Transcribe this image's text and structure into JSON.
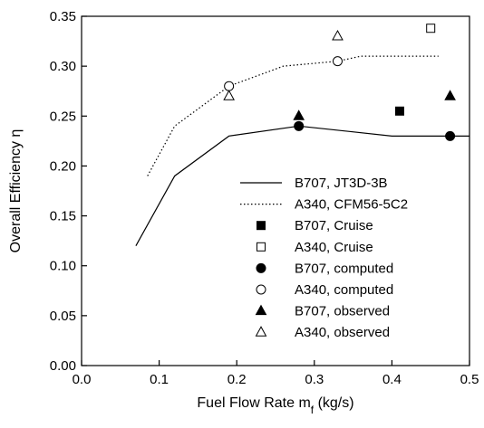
{
  "chart_data": {
    "type": "line",
    "title": "",
    "xlabel": "Fuel Flow Rate m",
    "xlabel_subscript": "f",
    "xlabel_unit": " (kg/s)",
    "ylabel": "Overall Efficiency η",
    "xlim": [
      0.0,
      0.5
    ],
    "ylim": [
      0.0,
      0.35
    ],
    "xticks": [
      "0.0",
      "0.1",
      "0.2",
      "0.3",
      "0.4",
      "0.5"
    ],
    "yticks": [
      "0.00",
      "0.05",
      "0.10",
      "0.15",
      "0.20",
      "0.25",
      "0.30",
      "0.35"
    ],
    "grid": false,
    "legend_position": "lower-right",
    "lines": [
      {
        "name": "B707, JT3D-3B",
        "style": "solid",
        "x": [
          0.07,
          0.12,
          0.19,
          0.28,
          0.4,
          0.5
        ],
        "y": [
          0.12,
          0.19,
          0.23,
          0.24,
          0.23,
          0.23
        ]
      },
      {
        "name": "A340, CFM56-5C2",
        "style": "dotted",
        "x": [
          0.085,
          0.12,
          0.19,
          0.26,
          0.33,
          0.36,
          0.46
        ],
        "y": [
          0.19,
          0.24,
          0.28,
          0.3,
          0.305,
          0.31,
          0.31
        ]
      }
    ],
    "points": [
      {
        "name": "B707, Cruise",
        "marker": "square-filled",
        "x": [
          0.41
        ],
        "y": [
          0.255
        ]
      },
      {
        "name": "A340, Cruise",
        "marker": "square-open",
        "x": [
          0.45
        ],
        "y": [
          0.338
        ]
      },
      {
        "name": "B707, computed",
        "marker": "circle-filled",
        "x": [
          0.28,
          0.475
        ],
        "y": [
          0.24,
          0.23
        ]
      },
      {
        "name": "A340, computed",
        "marker": "circle-open",
        "x": [
          0.19,
          0.33
        ],
        "y": [
          0.28,
          0.305
        ]
      },
      {
        "name": "B707, observed",
        "marker": "triangle-filled",
        "x": [
          0.28,
          0.475
        ],
        "y": [
          0.25,
          0.27
        ]
      },
      {
        "name": "A340, observed",
        "marker": "triangle-open",
        "x": [
          0.19,
          0.33
        ],
        "y": [
          0.27,
          0.33
        ]
      }
    ]
  }
}
